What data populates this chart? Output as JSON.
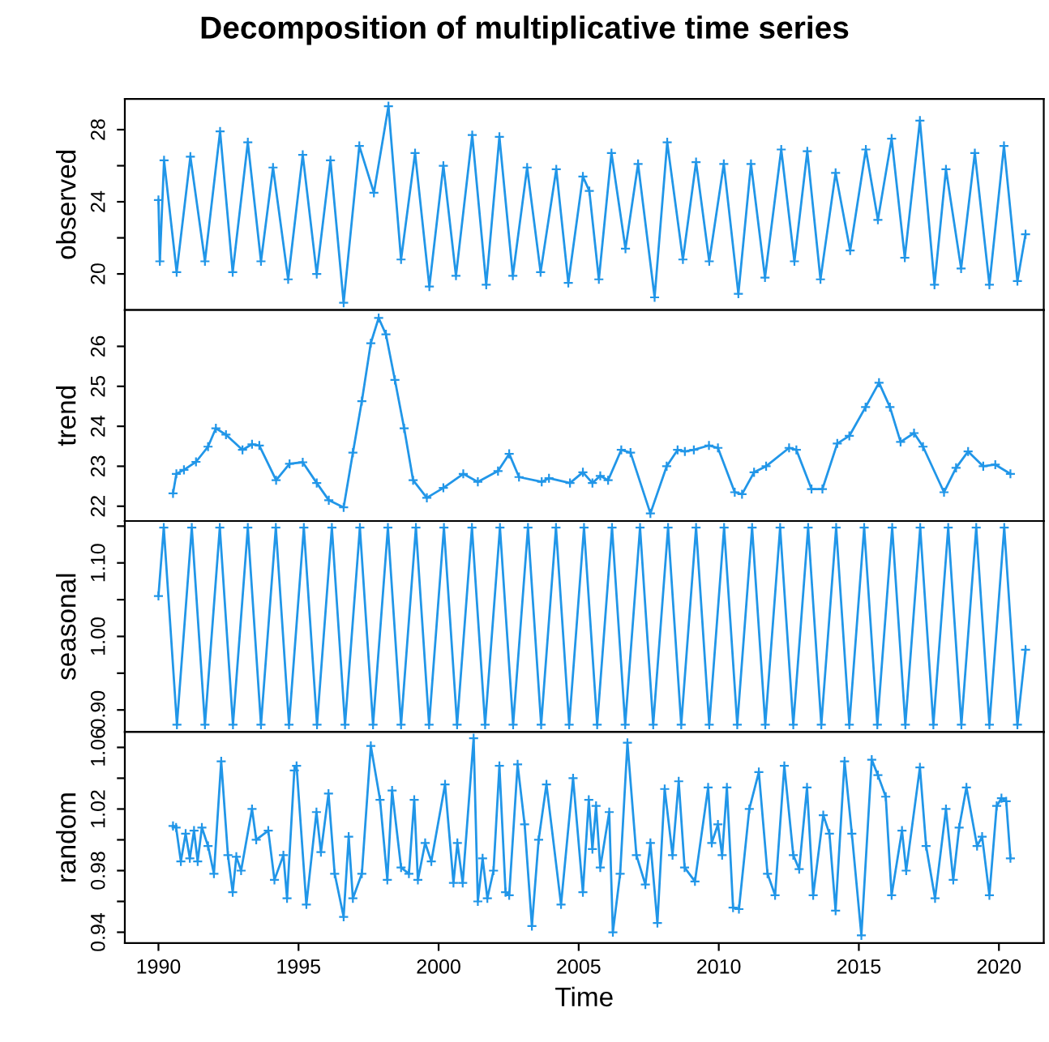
{
  "chart_data": [
    {
      "type": "line",
      "title": "Decomposition of multiplicative time series",
      "ylabel": "observed",
      "marker": "cross",
      "line_style": "solid",
      "grid": false,
      "tick_labels": "y",
      "xlim": [
        1988.8,
        2021.6
      ],
      "ylim": [
        18.0,
        29.7
      ],
      "yticks": [
        20,
        {
          "value": 22,
          "label": null
        },
        24,
        {
          "value": 26,
          "label": null
        },
        28
      ],
      "series": [
        {
          "color": "#2196e8",
          "x": [
            1990.0,
            1990.05,
            1990.2,
            1990.65,
            1991.14,
            1991.66,
            1992.2,
            1992.65,
            1993.19,
            1993.66,
            1994.09,
            1994.63,
            1995.15,
            1995.65,
            1996.14,
            1996.61,
            1997.17,
            1997.69,
            1998.21,
            1998.66,
            1999.16,
            1999.67,
            2000.17,
            2000.62,
            2001.2,
            2001.7,
            2002.17,
            2002.65,
            2003.16,
            2003.64,
            2004.2,
            2004.63,
            2005.15,
            2005.38,
            2005.72,
            2006.17,
            2006.67,
            2007.12,
            2007.71,
            2008.16,
            2008.72,
            2009.19,
            2009.66,
            2010.18,
            2010.7,
            2011.15,
            2011.65,
            2012.23,
            2012.7,
            2013.16,
            2013.63,
            2014.17,
            2014.69,
            2015.25,
            2015.68,
            2016.17,
            2016.64,
            2017.18,
            2017.7,
            2018.11,
            2018.65,
            2019.14,
            2019.66,
            2020.18,
            2020.66,
            2020.95
          ],
          "values": [
            24.1,
            20.7,
            26.3,
            20.1,
            26.5,
            20.7,
            27.9,
            20.1,
            27.3,
            20.7,
            25.9,
            19.7,
            26.6,
            20.0,
            26.3,
            18.4,
            27.1,
            24.5,
            29.3,
            20.8,
            26.7,
            19.3,
            26.0,
            19.9,
            27.7,
            19.4,
            27.6,
            19.9,
            25.9,
            20.1,
            25.8,
            19.5,
            25.4,
            24.6,
            19.7,
            26.7,
            21.4,
            26.1,
            18.7,
            27.3,
            20.8,
            26.2,
            20.7,
            26.1,
            18.9,
            26.1,
            19.8,
            26.9,
            20.7,
            26.8,
            19.7,
            25.6,
            21.3,
            26.9,
            23.0,
            27.5,
            20.9,
            28.5,
            19.4,
            25.8,
            20.3,
            26.7,
            19.4,
            27.1,
            19.6,
            22.2
          ]
        }
      ]
    },
    {
      "type": "line",
      "ylabel": "trend",
      "marker": "cross",
      "line_style": "solid",
      "grid": false,
      "tick_labels": "y",
      "xlim": [
        1988.8,
        2021.6
      ],
      "ylim": [
        21.63,
        26.91
      ],
      "yticks": [
        22,
        23,
        24,
        25,
        26
      ],
      "series": [
        {
          "color": "#2196e8",
          "x": [
            1990.52,
            1990.64,
            1990.91,
            1991.34,
            1991.77,
            1992.05,
            1992.41,
            1993.0,
            1993.34,
            1993.6,
            1994.2,
            1994.68,
            1995.15,
            1995.65,
            1996.08,
            1996.61,
            1996.94,
            1997.26,
            1997.58,
            1997.86,
            1998.12,
            1998.44,
            1998.77,
            1999.09,
            1999.58,
            2000.17,
            2000.88,
            2001.4,
            2002.12,
            2002.52,
            2002.87,
            2003.68,
            2003.94,
            2004.69,
            2005.15,
            2005.49,
            2005.77,
            2006.05,
            2006.52,
            2006.85,
            2007.56,
            2008.14,
            2008.53,
            2008.79,
            2009.11,
            2009.65,
            2009.97,
            2010.57,
            2010.83,
            2011.26,
            2011.69,
            2012.51,
            2012.77,
            2013.31,
            2013.7,
            2014.23,
            2014.66,
            2015.24,
            2015.72,
            2016.11,
            2016.49,
            2016.97,
            2017.29,
            2018.04,
            2018.47,
            2018.9,
            2019.44,
            2019.87,
            2020.41
          ],
          "values": [
            22.32,
            22.81,
            22.91,
            23.11,
            23.49,
            23.95,
            23.79,
            23.41,
            23.55,
            23.52,
            22.65,
            23.06,
            23.1,
            22.58,
            22.15,
            21.97,
            23.34,
            24.63,
            26.08,
            26.71,
            26.3,
            25.16,
            23.95,
            22.65,
            22.21,
            22.46,
            22.81,
            22.61,
            22.88,
            23.31,
            22.73,
            22.61,
            22.7,
            22.58,
            22.85,
            22.58,
            22.76,
            22.65,
            23.41,
            23.34,
            21.82,
            23.0,
            23.41,
            23.37,
            23.41,
            23.52,
            23.46,
            22.35,
            22.3,
            22.85,
            23.0,
            23.46,
            23.41,
            22.43,
            22.43,
            23.57,
            23.76,
            24.48,
            25.09,
            24.48,
            23.61,
            23.83,
            23.49,
            22.35,
            22.96,
            23.37,
            23.0,
            23.04,
            22.81
          ]
        }
      ]
    },
    {
      "type": "line",
      "ylabel": "seasonal",
      "marker": "cross",
      "line_style": "solid",
      "grid": false,
      "tick_labels": "y",
      "xlim": [
        1988.8,
        2021.6
      ],
      "ylim": [
        0.87,
        1.157
      ],
      "yticks": [
        {
          "value": 0.9,
          "label": "0.90"
        },
        {
          "value": 0.95,
          "label": null
        },
        {
          "value": 1.0,
          "label": "1.00"
        },
        {
          "value": 1.05,
          "label": null
        },
        {
          "value": 1.1,
          "label": "1.10"
        },
        {
          "value": 1.15,
          "label": null
        }
      ],
      "series": [
        {
          "color": "#2196e8",
          "x": [
            1990.0,
            1990.19,
            1990.66,
            1991.19,
            1991.66,
            1992.19,
            1992.66,
            1993.19,
            1993.66,
            1994.19,
            1994.66,
            1995.19,
            1995.66,
            1996.19,
            1996.66,
            1997.19,
            1997.66,
            1998.19,
            1998.66,
            1999.19,
            1999.66,
            2000.19,
            2000.66,
            2001.19,
            2001.66,
            2002.19,
            2002.66,
            2003.19,
            2003.66,
            2004.19,
            2004.66,
            2005.19,
            2005.66,
            2006.19,
            2006.66,
            2007.19,
            2007.66,
            2008.19,
            2008.66,
            2009.19,
            2009.66,
            2010.19,
            2010.66,
            2011.19,
            2011.66,
            2012.19,
            2012.66,
            2013.19,
            2013.66,
            2014.19,
            2014.66,
            2015.19,
            2015.66,
            2016.19,
            2016.66,
            2017.19,
            2017.66,
            2018.19,
            2018.66,
            2019.19,
            2019.66,
            2020.19,
            2020.66,
            2020.95
          ],
          "values": [
            1.055,
            1.148,
            0.88,
            1.148,
            0.88,
            1.148,
            0.88,
            1.148,
            0.88,
            1.148,
            0.88,
            1.148,
            0.88,
            1.148,
            0.88,
            1.148,
            0.88,
            1.148,
            0.88,
            1.148,
            0.88,
            1.148,
            0.88,
            1.148,
            0.88,
            1.148,
            0.88,
            1.148,
            0.88,
            1.148,
            0.88,
            1.148,
            0.88,
            1.148,
            0.88,
            1.148,
            0.88,
            1.148,
            0.88,
            1.148,
            0.88,
            1.148,
            0.88,
            1.148,
            0.88,
            1.148,
            0.88,
            1.148,
            0.88,
            1.148,
            0.88,
            1.148,
            0.88,
            1.148,
            0.88,
            1.148,
            0.88,
            1.148,
            0.88,
            1.148,
            0.88,
            1.148,
            0.88,
            0.982
          ]
        }
      ]
    },
    {
      "type": "line",
      "xlabel": "Time",
      "ylabel": "random",
      "marker": "cross",
      "line_style": "solid",
      "grid": false,
      "xlim": [
        1988.8,
        2021.6
      ],
      "xticks": [
        1990,
        1995,
        2000,
        2005,
        2010,
        2015,
        2020
      ],
      "ylim": [
        0.933,
        1.07
      ],
      "yticks": [
        0.94,
        {
          "value": 0.96,
          "label": null
        },
        0.98,
        {
          "value": 1.0,
          "label": null
        },
        1.02,
        {
          "value": 1.04,
          "label": null
        },
        1.06
      ],
      "series": [
        {
          "color": "#2196e8",
          "x": [
            1990.52,
            1990.63,
            1990.8,
            1990.97,
            1991.12,
            1991.27,
            1991.4,
            1991.55,
            1991.77,
            1991.98,
            1992.24,
            1992.48,
            1992.65,
            1992.78,
            1992.95,
            1993.34,
            1993.49,
            1993.92,
            1994.14,
            1994.46,
            1994.59,
            1994.85,
            1994.93,
            1995.28,
            1995.64,
            1995.8,
            1996.07,
            1996.29,
            1996.61,
            1996.79,
            1996.94,
            1997.26,
            1997.58,
            1997.91,
            1998.17,
            1998.34,
            1998.66,
            1998.94,
            1999.13,
            1999.26,
            1999.52,
            1999.74,
            2000.23,
            2000.53,
            2000.67,
            2000.86,
            2001.25,
            2001.4,
            2001.57,
            2001.74,
            2001.96,
            2002.17,
            2002.39,
            2002.52,
            2002.82,
            2003.07,
            2003.33,
            2003.57,
            2003.85,
            2004.37,
            2004.8,
            2005.15,
            2005.36,
            2005.49,
            2005.62,
            2005.77,
            2006.09,
            2006.22,
            2006.48,
            2006.74,
            2007.06,
            2007.38,
            2007.56,
            2007.81,
            2008.07,
            2008.35,
            2008.57,
            2008.78,
            2009.15,
            2009.62,
            2009.75,
            2009.97,
            2010.12,
            2010.29,
            2010.51,
            2010.72,
            2011.09,
            2011.43,
            2011.74,
            2012.01,
            2012.34,
            2012.66,
            2012.87,
            2013.15,
            2013.37,
            2013.73,
            2013.95,
            2014.17,
            2014.49,
            2014.75,
            2015.09,
            2015.46,
            2015.68,
            2015.96,
            2016.17,
            2016.54,
            2016.69,
            2017.18,
            2017.4,
            2017.72,
            2018.11,
            2018.37,
            2018.58,
            2018.84,
            2019.22,
            2019.4,
            2019.66,
            2019.92,
            2020.09,
            2020.26,
            2020.41
          ],
          "values": [
            1.009,
            1.008,
            0.986,
            1.004,
            0.988,
            1.006,
            0.986,
            1.008,
            0.996,
            0.978,
            1.051,
            0.99,
            0.966,
            0.989,
            0.98,
            1.02,
            1.0,
            1.006,
            0.974,
            0.99,
            0.962,
            1.045,
            1.048,
            0.958,
            1.018,
            0.992,
            1.03,
            0.978,
            0.95,
            1.002,
            0.962,
            0.978,
            1.061,
            1.026,
            0.974,
            1.032,
            0.982,
            0.978,
            1.026,
            0.974,
            0.998,
            0.986,
            1.036,
            0.972,
            0.998,
            0.972,
            1.066,
            0.96,
            0.988,
            0.962,
            0.98,
            1.048,
            0.966,
            0.964,
            1.049,
            1.01,
            0.944,
            1.0,
            1.036,
            0.958,
            1.04,
            0.966,
            1.026,
            0.994,
            1.022,
            0.982,
            1.018,
            0.94,
            0.978,
            1.063,
            0.99,
            0.971,
            0.998,
            0.946,
            1.033,
            0.99,
            1.038,
            0.982,
            0.973,
            1.034,
            0.998,
            1.01,
            0.99,
            1.034,
            0.956,
            0.955,
            1.02,
            1.044,
            0.978,
            0.964,
            1.048,
            0.99,
            0.981,
            1.034,
            0.964,
            1.016,
            1.004,
            0.954,
            1.051,
            1.004,
            0.938,
            1.052,
            1.042,
            1.028,
            0.964,
            1.006,
            0.98,
            1.047,
            0.996,
            0.962,
            1.02,
            0.974,
            1.008,
            1.034,
            0.996,
            1.002,
            0.964,
            1.022,
            1.027,
            1.025,
            0.988
          ]
        }
      ]
    }
  ]
}
